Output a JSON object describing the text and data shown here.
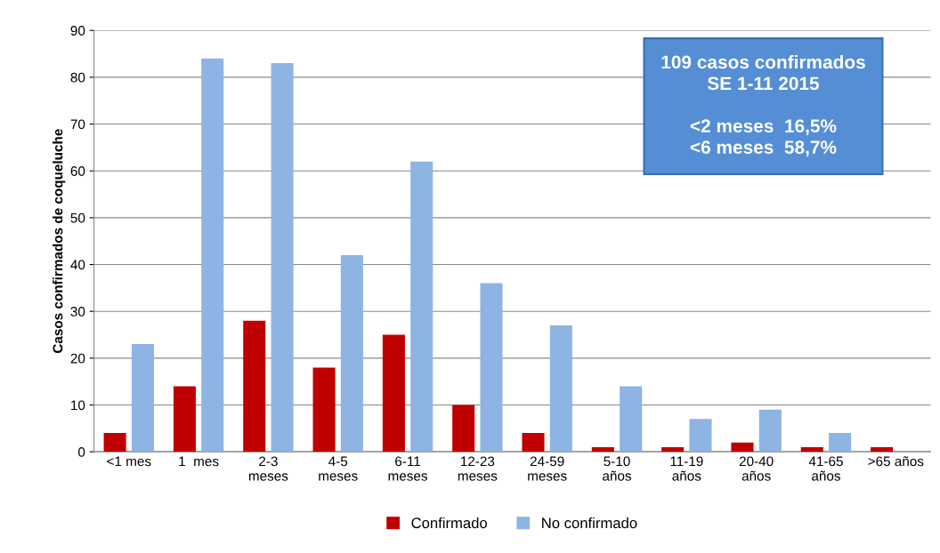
{
  "chart_data": {
    "type": "bar",
    "ylabel": "Casos confirmados de coqueluche",
    "categories": [
      "<1 mes",
      "1  mes",
      "2-3\nmeses",
      "4-5\nmeses",
      "6-11\nmeses",
      "12-23\nmeses",
      "24-59\nmeses",
      "5-10\naños",
      "11-19\naños",
      "20-40\naños",
      "41-65\naños",
      ">65 años"
    ],
    "series": [
      {
        "name": "Confirmado",
        "color": "#c00000",
        "values": [
          4,
          14,
          28,
          18,
          25,
          10,
          4,
          1,
          1,
          2,
          1,
          1
        ]
      },
      {
        "name": "No confirmado",
        "color": "#8db4e2",
        "values": [
          23,
          84,
          83,
          42,
          62,
          36,
          27,
          14,
          7,
          9,
          4,
          0
        ]
      }
    ],
    "ylim": [
      0,
      90
    ],
    "yticks": [
      0,
      10,
      20,
      30,
      40,
      50,
      60,
      70,
      80,
      90
    ],
    "grid": "y",
    "legend": "bottom",
    "annotations": [
      "109 casos confirmados\nSE 1-11 2015\n\n<2 meses  16,5%\n<6 meses  58,7%"
    ]
  }
}
